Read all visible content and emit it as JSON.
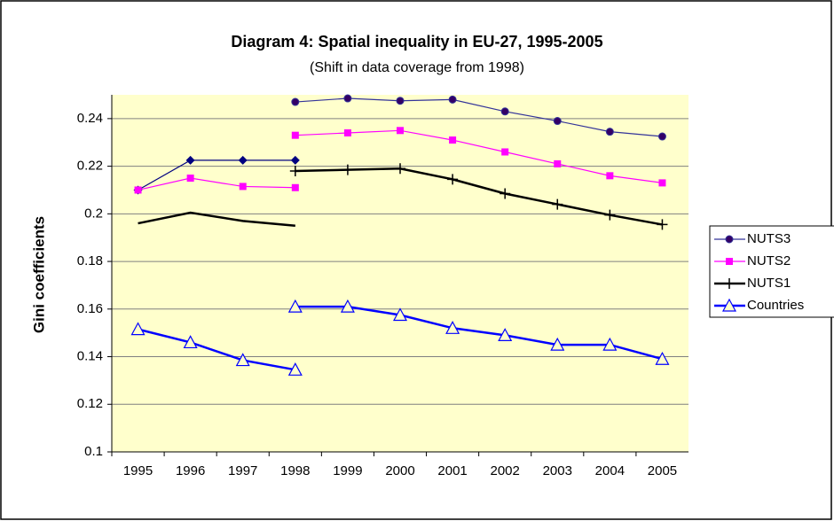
{
  "chart_data": {
    "type": "line",
    "title": "Diagram 4: Spatial inequality in EU-27, 1995-2005",
    "subtitle": "(Shift in data coverage from 1998)",
    "y_label": "Gini coefficients",
    "categories": [
      "1995",
      "1996",
      "1997",
      "1998",
      "1999",
      "2000",
      "2001",
      "2002",
      "2003",
      "2004",
      "2005"
    ],
    "ylim": [
      0.1,
      0.25
    ],
    "yticks": [
      0.1,
      0.12,
      0.14,
      0.16,
      0.18,
      0.2,
      0.22,
      0.24
    ],
    "grid": true,
    "legend": "right",
    "series": [
      {
        "name": "NUTS3",
        "color": "#333399",
        "marker": "circle",
        "marker_color": "#330066",
        "prior_marker": "diamond",
        "prior_color": "#000080",
        "values_prior": [
          0.21,
          0.2225,
          0.2225,
          0.2225,
          null,
          null,
          null,
          null,
          null,
          null,
          null
        ],
        "values": [
          null,
          null,
          null,
          0.247,
          0.2485,
          0.2475,
          0.248,
          0.243,
          0.239,
          0.2345,
          0.2325
        ]
      },
      {
        "name": "NUTS2",
        "color": "#ff00ff",
        "marker": "square",
        "marker_color": "#ff00ff",
        "prior_marker": "square",
        "prior_color": "#ff00ff",
        "values_prior": [
          0.21,
          0.215,
          0.2115,
          0.211,
          null,
          null,
          null,
          null,
          null,
          null,
          null
        ],
        "values": [
          null,
          null,
          null,
          0.233,
          0.234,
          0.235,
          0.231,
          0.226,
          0.221,
          0.216,
          0.213
        ]
      },
      {
        "name": "NUTS1",
        "color": "#000000",
        "marker": "plus",
        "marker_color": "#000000",
        "prior_marker": "none",
        "prior_color": "#000000",
        "values_prior": [
          0.196,
          0.2005,
          0.197,
          0.195,
          null,
          null,
          null,
          null,
          null,
          null,
          null
        ],
        "values": [
          null,
          null,
          null,
          0.218,
          0.2185,
          0.219,
          0.2145,
          0.2085,
          0.204,
          0.1995,
          0.1955
        ]
      },
      {
        "name": "Countries",
        "color": "#0000ff",
        "marker": "triangle",
        "marker_color": "#0000ff",
        "prior_marker": "triangle",
        "prior_color": "#0000ff",
        "values_prior": [
          0.1515,
          0.146,
          0.1385,
          0.1345,
          null,
          null,
          null,
          null,
          null,
          null,
          null
        ],
        "values": [
          null,
          null,
          null,
          0.161,
          0.161,
          0.1575,
          0.152,
          0.149,
          0.145,
          0.145,
          0.139
        ]
      }
    ]
  }
}
